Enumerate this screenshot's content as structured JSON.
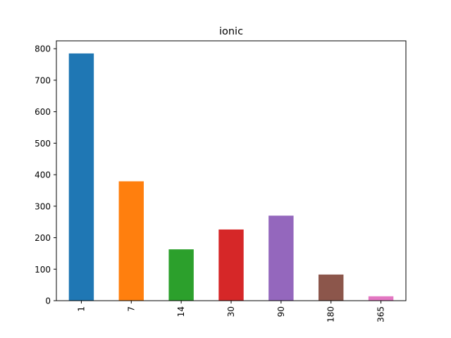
{
  "chart_data": {
    "type": "bar",
    "title": "ionic",
    "xlabel": "",
    "ylabel": "",
    "categories": [
      "1",
      "7",
      "14",
      "30",
      "90",
      "180",
      "365"
    ],
    "values": [
      785,
      379,
      163,
      226,
      270,
      83,
      14
    ],
    "colors": [
      "#1f77b4",
      "#ff7f0e",
      "#2ca02c",
      "#d62728",
      "#9467bd",
      "#8c564b",
      "#e377c2"
    ],
    "ylim": [
      0,
      825
    ],
    "yticks": [
      0,
      100,
      200,
      300,
      400,
      500,
      600,
      700,
      800
    ],
    "grid": false,
    "legend": "none"
  }
}
